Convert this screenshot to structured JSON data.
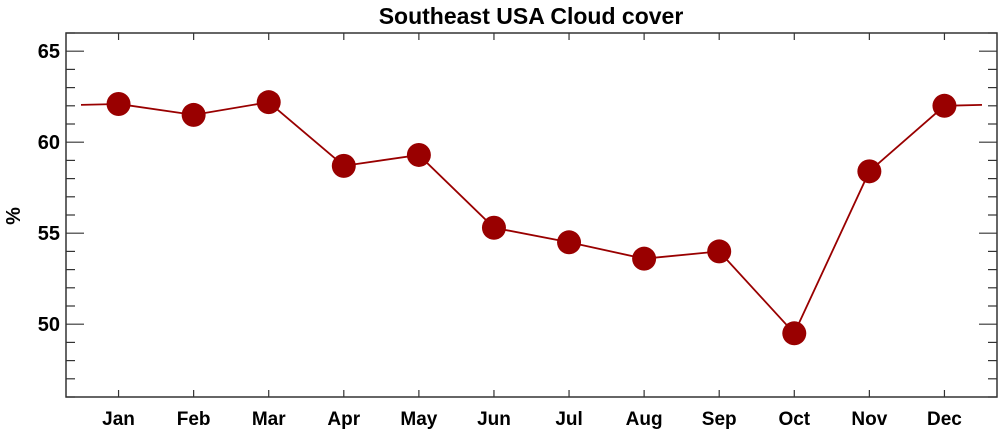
{
  "chart_data": {
    "type": "line",
    "title": "Southeast USA Cloud cover",
    "xlabel": "",
    "ylabel": "%",
    "categories": [
      "Jan",
      "Feb",
      "Mar",
      "Apr",
      "May",
      "Jun",
      "Jul",
      "Aug",
      "Sep",
      "Oct",
      "Nov",
      "Dec"
    ],
    "x": [
      1,
      2,
      3,
      4,
      5,
      6,
      7,
      8,
      9,
      10,
      11,
      12
    ],
    "series": [
      {
        "name": "Cloud cover",
        "values": [
          62.1,
          61.5,
          62.2,
          58.7,
          59.3,
          55.3,
          54.5,
          53.6,
          54.0,
          49.5,
          58.4,
          62.0
        ],
        "color": "#990000"
      }
    ],
    "wrap_value": 62.05,
    "xlim": [
      0.3,
      12.7
    ],
    "ylim": [
      46,
      66
    ],
    "yticks": [
      50,
      55,
      60,
      65
    ],
    "yminor_step": 1,
    "grid": false,
    "legend": "none"
  }
}
